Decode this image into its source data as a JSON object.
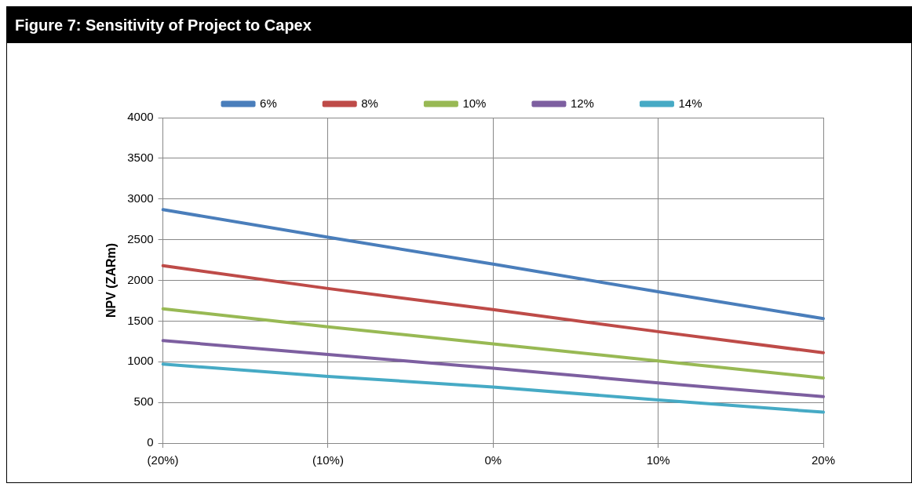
{
  "chart_data": {
    "type": "line",
    "title": "Figure 7: Sensitivity of Project to Capex",
    "ylabel": "NPV (ZARm)",
    "categories": [
      "(20%)",
      "(10%)",
      "0%",
      "10%",
      "20%"
    ],
    "series": [
      {
        "name": "6%",
        "color": "#4a7ebb",
        "values": [
          2870,
          2530,
          2200,
          1860,
          1530
        ]
      },
      {
        "name": "8%",
        "color": "#be4b48",
        "values": [
          2180,
          1900,
          1640,
          1370,
          1110
        ]
      },
      {
        "name": "10%",
        "color": "#98b954",
        "values": [
          1650,
          1430,
          1220,
          1010,
          800
        ]
      },
      {
        "name": "12%",
        "color": "#7d5fa0",
        "values": [
          1260,
          1090,
          920,
          740,
          570
        ]
      },
      {
        "name": "14%",
        "color": "#46aac5",
        "values": [
          970,
          820,
          690,
          530,
          380
        ]
      }
    ],
    "ylim": [
      0,
      4000
    ],
    "yticks": [
      0,
      500,
      1000,
      1500,
      2000,
      2500,
      3000,
      3500,
      4000
    ],
    "grid": true,
    "legend": "top",
    "marker": "none",
    "line_style": "solid"
  }
}
